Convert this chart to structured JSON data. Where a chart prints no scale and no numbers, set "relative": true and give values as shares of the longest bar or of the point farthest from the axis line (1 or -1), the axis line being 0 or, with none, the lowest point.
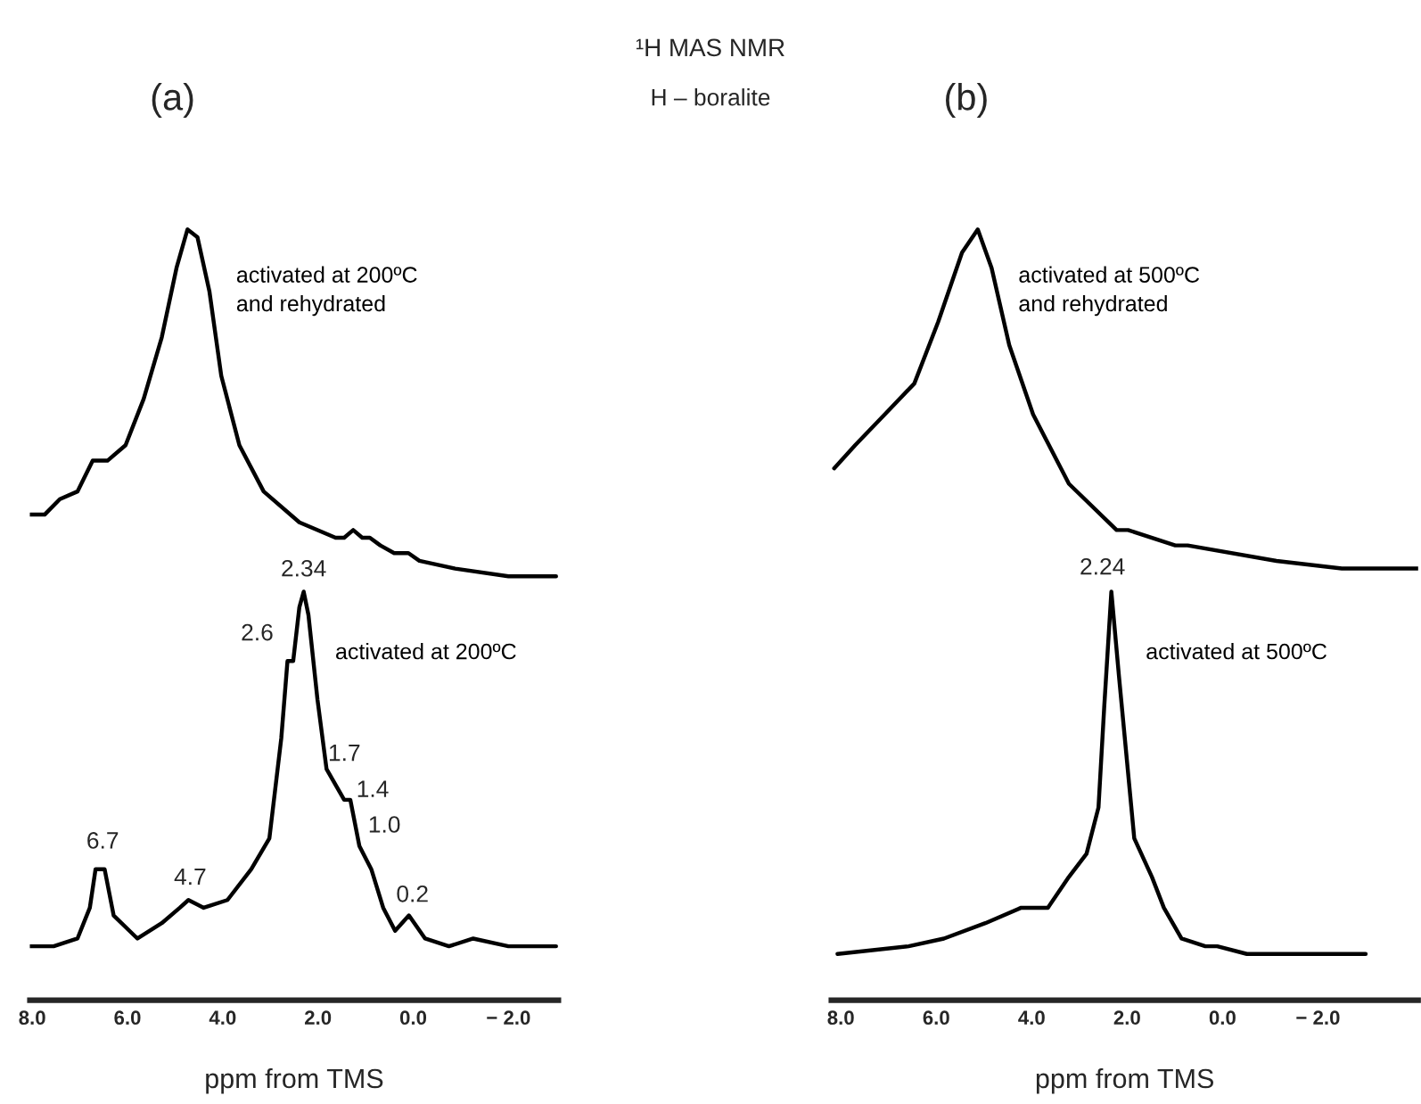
{
  "chart_data": [
    {
      "type": "line",
      "title": "(a)",
      "xlabel": "ppm from TMS",
      "relative": true,
      "xlim": [
        8.05,
        -3.05
      ],
      "xticks": [
        {
          "value": 8,
          "label": "8.0"
        },
        {
          "value": 6,
          "label": "6.0"
        },
        {
          "value": 4,
          "label": "4.0"
        },
        {
          "value": 2,
          "label": "2.0"
        },
        {
          "value": 0,
          "label": "0.0"
        },
        {
          "value": -2,
          "label": "− 2.0"
        }
      ],
      "annotations": [
        "¹H MAS NMR",
        "H – boralite",
        {
          "text": "2.34",
          "x": 2.3,
          "y": 0.53
        },
        {
          "text": "2.6",
          "x": 2.64,
          "y": 0.44
        },
        {
          "text": "1.7",
          "x": 1.82,
          "y": 0.3
        },
        {
          "text": "1.4",
          "x": 1.45,
          "y": 0.26
        },
        {
          "text": "1.0",
          "x": 1.13,
          "y": 0.2
        },
        {
          "text": "0.2",
          "x": 0.09,
          "y": 0.11
        },
        {
          "text": "6.7",
          "x": 6.67,
          "y": 0.17
        },
        {
          "text": "4.7",
          "x": 4.72,
          "y": 0.13
        }
      ],
      "series": [
        {
          "name": "activated at 200ºC\nand rehydrated",
          "color": "#000000",
          "x": [
            8.05,
            7.74,
            7.42,
            7.05,
            6.73,
            6.42,
            6.04,
            5.66,
            5.28,
            4.97,
            4.74,
            4.53,
            4.28,
            4.03,
            3.65,
            3.14,
            2.39,
            1.63,
            1.45,
            1.26,
            1.07,
            0.91,
            0.69,
            0.4,
            0.2,
            0.1,
            -0.13,
            -0.88,
            -2.0,
            -3.0
          ],
          "values": [
            0.63,
            0.63,
            0.65,
            0.66,
            0.7,
            0.7,
            0.72,
            0.78,
            0.86,
            0.95,
            1.0,
            0.99,
            0.92,
            0.81,
            0.72,
            0.66,
            0.62,
            0.6,
            0.6,
            0.61,
            0.6,
            0.6,
            0.59,
            0.58,
            0.58,
            0.58,
            0.57,
            0.56,
            0.55,
            0.55
          ]
        },
        {
          "name": "activated at 200ºC",
          "color": "#000000",
          "x": [
            8.05,
            7.55,
            7.05,
            6.79,
            6.67,
            6.48,
            6.29,
            5.79,
            5.28,
            4.9,
            4.72,
            4.4,
            3.9,
            3.4,
            3.02,
            2.77,
            2.64,
            2.52,
            2.39,
            2.3,
            2.2,
            2.01,
            1.82,
            1.45,
            1.32,
            1.13,
            0.88,
            0.63,
            0.38,
            0.09,
            -0.25,
            -0.75,
            -1.26,
            -2.0,
            -3.0
          ],
          "values": [
            0.07,
            0.07,
            0.08,
            0.12,
            0.17,
            0.17,
            0.11,
            0.08,
            0.1,
            0.12,
            0.13,
            0.12,
            0.13,
            0.17,
            0.21,
            0.34,
            0.44,
            0.44,
            0.51,
            0.53,
            0.5,
            0.39,
            0.3,
            0.26,
            0.26,
            0.2,
            0.17,
            0.12,
            0.09,
            0.11,
            0.08,
            0.07,
            0.08,
            0.07,
            0.07
          ]
        }
      ]
    },
    {
      "type": "line",
      "title": "(b)",
      "xlabel": "ppm from TMS",
      "relative": true,
      "xlim": [
        8.2,
        -4.1
      ],
      "xticks": [
        {
          "value": 8,
          "label": "8.0"
        },
        {
          "value": 6,
          "label": "6.0"
        },
        {
          "value": 4,
          "label": "4.0"
        },
        {
          "value": 2,
          "label": "2.0"
        },
        {
          "value": 0,
          "label": "0.0"
        },
        {
          "value": -2,
          "label": "− 2.0"
        }
      ],
      "annotations": [
        {
          "text": "2.24",
          "x": 2.33,
          "y": 0.53
        }
      ],
      "series": [
        {
          "name": "activated at 500ºC\nand rehydrated",
          "color": "#000000",
          "x": [
            8.14,
            7.7,
            7.08,
            6.46,
            5.96,
            5.46,
            5.13,
            4.84,
            4.47,
            3.97,
            3.22,
            2.22,
            1.98,
            0.99,
            0.73,
            -1.13,
            -2.5,
            -4.1
          ],
          "values": [
            0.69,
            0.72,
            0.76,
            0.8,
            0.88,
            0.97,
            1.0,
            0.95,
            0.85,
            0.76,
            0.67,
            0.61,
            0.61,
            0.59,
            0.59,
            0.57,
            0.56,
            0.56
          ]
        },
        {
          "name": "activated at 500ºC",
          "color": "#000000",
          "x": [
            8.07,
            6.58,
            5.84,
            4.97,
            4.22,
            3.66,
            3.22,
            2.85,
            2.6,
            2.48,
            2.33,
            2.17,
            1.85,
            1.48,
            1.23,
            0.86,
            0.36,
            0.11,
            -0.51,
            -1.75,
            -3.0
          ],
          "values": [
            0.06,
            0.07,
            0.08,
            0.1,
            0.12,
            0.12,
            0.16,
            0.19,
            0.25,
            0.38,
            0.53,
            0.42,
            0.21,
            0.16,
            0.12,
            0.08,
            0.07,
            0.07,
            0.06,
            0.06,
            0.06
          ]
        }
      ]
    }
  ]
}
